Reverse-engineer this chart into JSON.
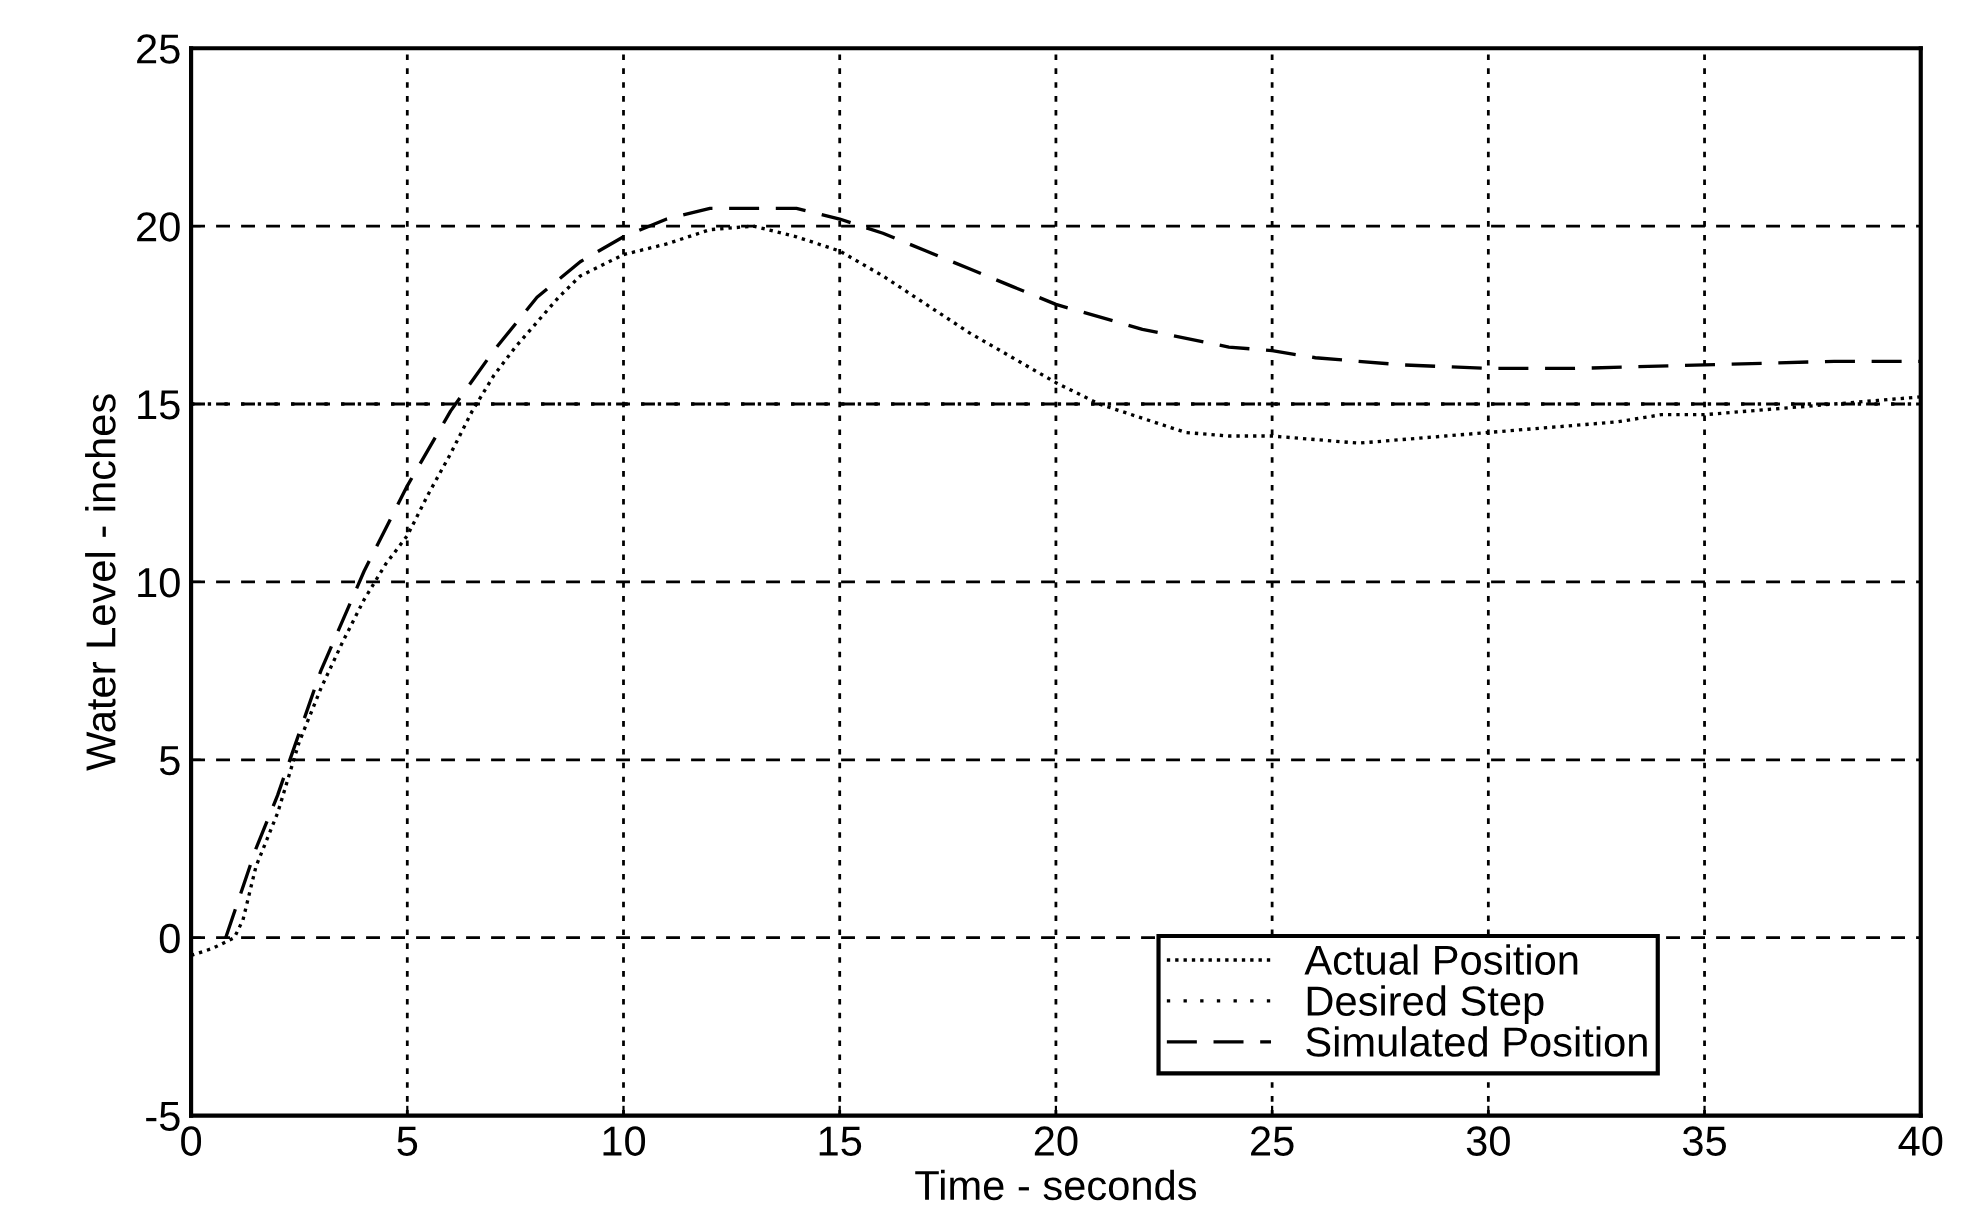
{
  "chart_data": {
    "type": "line",
    "xlabel": "Time - seconds",
    "ylabel": "Water Level - inches",
    "xlim": [
      0,
      40
    ],
    "ylim": [
      -5,
      25
    ],
    "xticks": [
      0,
      5,
      10,
      15,
      20,
      25,
      30,
      35,
      40
    ],
    "yticks": [
      -5,
      0,
      5,
      10,
      15,
      20,
      25
    ],
    "grid": true,
    "legend": "bottom right",
    "ref_lines": [
      {
        "axis": "y",
        "value": 15,
        "label": "Desired Step",
        "color": "#000000",
        "line_style": "dotted"
      }
    ],
    "series": [
      {
        "name": "Actual Position",
        "color": "#000000",
        "line_style": "dotted",
        "x": [
          0,
          0.5,
          1,
          1.2,
          1.5,
          2,
          2.5,
          3,
          3.5,
          4,
          4.5,
          5,
          5.5,
          6,
          6.5,
          7,
          7.5,
          8,
          8.5,
          9,
          10,
          11,
          12,
          13,
          14,
          15,
          16,
          17,
          18,
          19,
          20,
          21,
          22,
          23,
          24,
          25,
          26,
          27,
          28,
          29,
          30,
          31,
          32,
          33,
          34,
          35,
          36,
          37,
          38,
          39,
          40
        ],
        "values": [
          -0.5,
          -0.3,
          0,
          0.5,
          2,
          3.5,
          5.5,
          7,
          8.3,
          9.5,
          10.5,
          11.3,
          12.5,
          13.6,
          14.8,
          15.8,
          16.6,
          17.3,
          18,
          18.6,
          19.2,
          19.5,
          19.9,
          20,
          19.7,
          19.3,
          18.6,
          17.8,
          17,
          16.3,
          15.6,
          15,
          14.6,
          14.2,
          14.1,
          14.1,
          14,
          13.9,
          14,
          14.1,
          14.2,
          14.3,
          14.4,
          14.5,
          14.7,
          14.7,
          14.8,
          14.9,
          15,
          15.1,
          15.2
        ]
      },
      {
        "name": "Simulated Position",
        "color": "#000000",
        "line_style": "dashed",
        "x": [
          0.8,
          1.5,
          2,
          3,
          4,
          5,
          6,
          7,
          8,
          9,
          10,
          11,
          12,
          13,
          14,
          15,
          16,
          17,
          18,
          19,
          20,
          22,
          24,
          25,
          26,
          28,
          30,
          32,
          35,
          38,
          40
        ],
        "values": [
          0,
          2.5,
          4,
          7.5,
          10.3,
          12.7,
          14.8,
          16.5,
          18,
          19,
          19.7,
          20.2,
          20.5,
          20.5,
          20.5,
          20.2,
          19.8,
          19.3,
          18.8,
          18.3,
          17.8,
          17.1,
          16.6,
          16.5,
          16.3,
          16.1,
          16,
          16,
          16.1,
          16.2,
          16.2
        ]
      }
    ]
  }
}
